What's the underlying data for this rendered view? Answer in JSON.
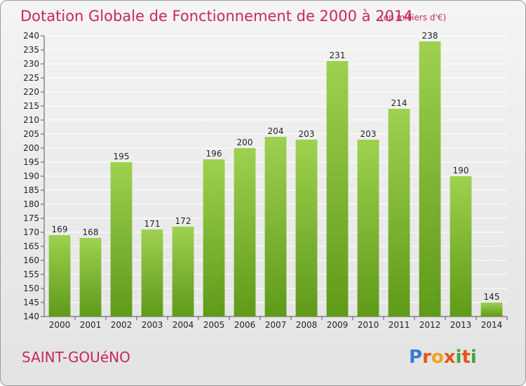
{
  "title": "Dotation Globale de Fonctionnement de 2000 à 2014",
  "subtitle": "(en milliers d'€)",
  "commune": "SAINT-GOUéNO",
  "logo": {
    "letters": [
      "P",
      "r",
      "o",
      "x",
      "i",
      "t",
      "i"
    ],
    "colors": [
      "#3a7bd5",
      "#e8541a",
      "#f0a020",
      "#e8541a",
      "#3fa535",
      "#e8541a",
      "#3fa535"
    ]
  },
  "colors": {
    "bar_light": "#9ed14f",
    "bar_dark": "#5f9a19",
    "accent": "#c8265e"
  },
  "chart_data": {
    "type": "bar",
    "categories": [
      "2000",
      "2001",
      "2002",
      "2003",
      "2004",
      "2005",
      "2006",
      "2007",
      "2008",
      "2009",
      "2010",
      "2011",
      "2012",
      "2013",
      "2014"
    ],
    "values": [
      169,
      168,
      195,
      171,
      172,
      196,
      200,
      204,
      203,
      231,
      203,
      214,
      238,
      190,
      145
    ],
    "ylim": [
      140,
      240
    ],
    "yticks": [
      140,
      145,
      150,
      155,
      160,
      165,
      170,
      175,
      180,
      185,
      190,
      195,
      200,
      205,
      210,
      215,
      220,
      225,
      230,
      235,
      240
    ],
    "grid": true
  }
}
